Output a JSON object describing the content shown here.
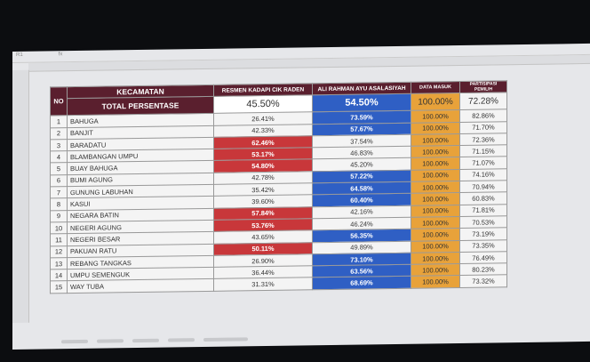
{
  "sheet": {
    "cell_ref": "R1",
    "fx": "fx"
  },
  "header": {
    "no": "NO",
    "kecamatan": "KECAMATAN",
    "total_label": "TOTAL PERSENTASE",
    "cand1": "RESMEN KADAPI CIK RADEN",
    "cand2": "ALI RAHMAN AYU ASALASIYAH",
    "data_masuk": "DATA MASUK",
    "partisipasi": "PARTISIPASI PEMILIH"
  },
  "totals": {
    "cand1": "45.50%",
    "cand2": "54.50%",
    "data_masuk": "100.00%",
    "partisipasi": "72.28%"
  },
  "colors": {
    "header": "#5a1f2e",
    "cand1_win": "#c8373a",
    "cand2_win": "#2f5fc4",
    "data_masuk": "#e8a23a"
  },
  "rows": [
    {
      "no": "1",
      "name": "BAHUGA",
      "c1": "26.41%",
      "c2": "73.59%",
      "dm": "100.00%",
      "pp": "82.86%",
      "win": 2
    },
    {
      "no": "2",
      "name": "BANJIT",
      "c1": "42.33%",
      "c2": "57.67%",
      "dm": "100.00%",
      "pp": "71.70%",
      "win": 2
    },
    {
      "no": "3",
      "name": "BARADATU",
      "c1": "62.46%",
      "c2": "37.54%",
      "dm": "100.00%",
      "pp": "72.36%",
      "win": 1
    },
    {
      "no": "4",
      "name": "BLAMBANGAN UMPU",
      "c1": "53.17%",
      "c2": "46.83%",
      "dm": "100.00%",
      "pp": "71.15%",
      "win": 1
    },
    {
      "no": "5",
      "name": "BUAY BAHUGA",
      "c1": "54.80%",
      "c2": "45.20%",
      "dm": "100.00%",
      "pp": "71.07%",
      "win": 1
    },
    {
      "no": "6",
      "name": "BUMI AGUNG",
      "c1": "42.78%",
      "c2": "57.22%",
      "dm": "100.00%",
      "pp": "74.16%",
      "win": 2
    },
    {
      "no": "7",
      "name": "GUNUNG LABUHAN",
      "c1": "35.42%",
      "c2": "64.58%",
      "dm": "100.00%",
      "pp": "70.94%",
      "win": 2
    },
    {
      "no": "8",
      "name": "KASUI",
      "c1": "39.60%",
      "c2": "60.40%",
      "dm": "100.00%",
      "pp": "60.83%",
      "win": 2
    },
    {
      "no": "9",
      "name": "NEGARA BATIN",
      "c1": "57.84%",
      "c2": "42.16%",
      "dm": "100.00%",
      "pp": "71.81%",
      "win": 1
    },
    {
      "no": "10",
      "name": "NEGERI AGUNG",
      "c1": "53.76%",
      "c2": "46.24%",
      "dm": "100.00%",
      "pp": "70.53%",
      "win": 1
    },
    {
      "no": "11",
      "name": "NEGERI BESAR",
      "c1": "43.65%",
      "c2": "56.35%",
      "dm": "100.00%",
      "pp": "73.19%",
      "win": 2
    },
    {
      "no": "12",
      "name": "PAKUAN RATU",
      "c1": "50.11%",
      "c2": "49.89%",
      "dm": "100.00%",
      "pp": "73.35%",
      "win": 1
    },
    {
      "no": "13",
      "name": "REBANG TANGKAS",
      "c1": "26.90%",
      "c2": "73.10%",
      "dm": "100.00%",
      "pp": "76.49%",
      "win": 2
    },
    {
      "no": "14",
      "name": "UMPU SEMENGUK",
      "c1": "36.44%",
      "c2": "63.56%",
      "dm": "100.00%",
      "pp": "80.23%",
      "win": 2
    },
    {
      "no": "15",
      "name": "WAY TUBA",
      "c1": "31.31%",
      "c2": "68.69%",
      "dm": "100.00%",
      "pp": "73.32%",
      "win": 2
    }
  ]
}
